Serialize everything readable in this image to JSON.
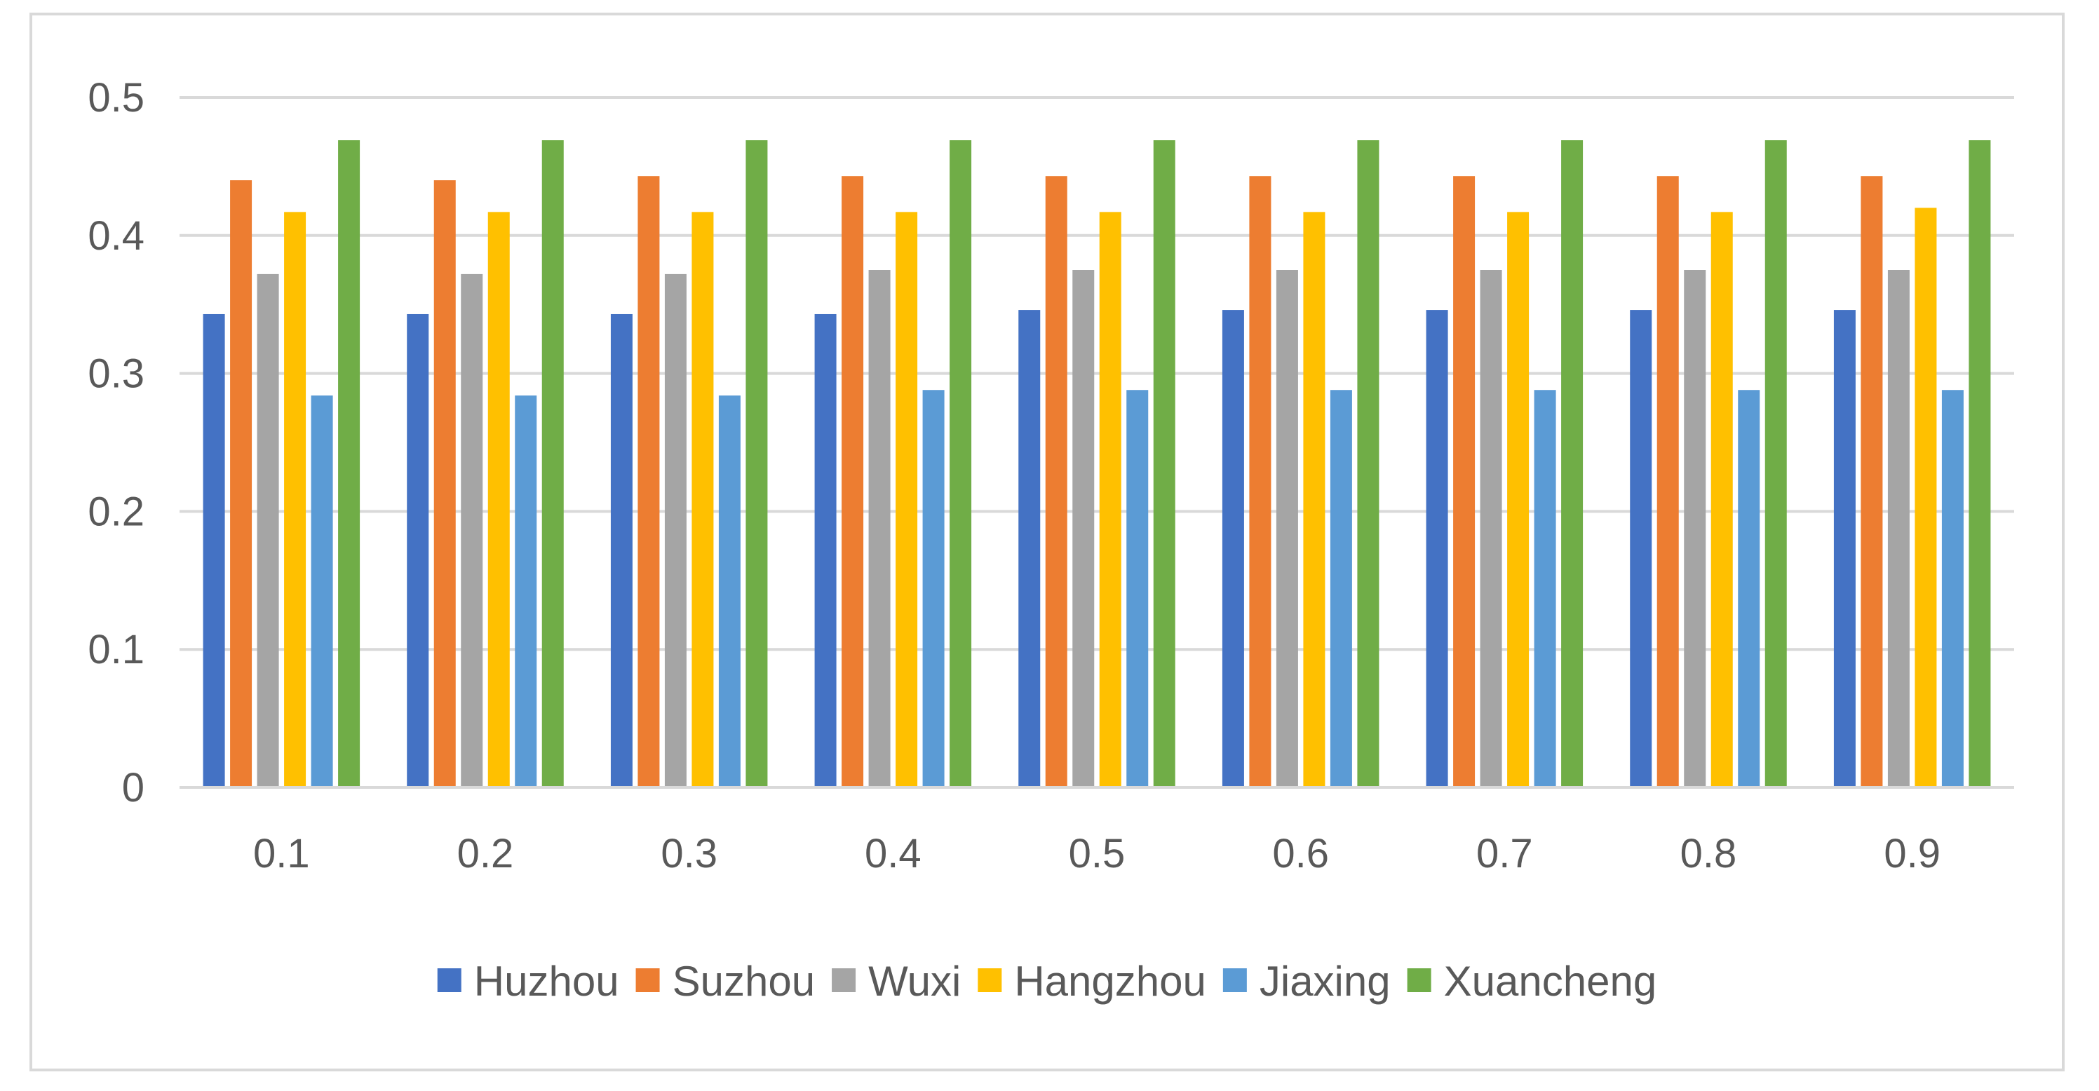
{
  "chart_data": {
    "type": "bar",
    "categories": [
      "0.1",
      "0.2",
      "0.3",
      "0.4",
      "0.5",
      "0.6",
      "0.7",
      "0.8",
      "0.9"
    ],
    "series": [
      {
        "name": "Huzhou",
        "color": "#4472C4",
        "values": [
          0.343,
          0.343,
          0.343,
          0.343,
          0.346,
          0.346,
          0.346,
          0.346,
          0.346
        ]
      },
      {
        "name": "Suzhou",
        "color": "#ED7D31",
        "values": [
          0.44,
          0.44,
          0.443,
          0.443,
          0.443,
          0.443,
          0.443,
          0.443,
          0.443
        ]
      },
      {
        "name": "Wuxi",
        "color": "#A5A5A5",
        "values": [
          0.372,
          0.372,
          0.372,
          0.375,
          0.375,
          0.375,
          0.375,
          0.375,
          0.375
        ]
      },
      {
        "name": "Hangzhou",
        "color": "#FFC000",
        "values": [
          0.417,
          0.417,
          0.417,
          0.417,
          0.417,
          0.417,
          0.417,
          0.417,
          0.42
        ]
      },
      {
        "name": "Jiaxing",
        "color": "#5B9BD5",
        "values": [
          0.284,
          0.284,
          0.284,
          0.288,
          0.288,
          0.288,
          0.288,
          0.288,
          0.288
        ]
      },
      {
        "name": "Xuancheng",
        "color": "#70AD47",
        "values": [
          0.469,
          0.469,
          0.469,
          0.469,
          0.469,
          0.469,
          0.469,
          0.469,
          0.469
        ]
      }
    ],
    "y_ticks": [
      "0",
      "0.1",
      "0.2",
      "0.3",
      "0.4",
      "0.5"
    ],
    "ylim": [
      0,
      0.5
    ],
    "grid": true,
    "legend_position": "bottom",
    "title": "",
    "xlabel": "",
    "ylabel": ""
  }
}
